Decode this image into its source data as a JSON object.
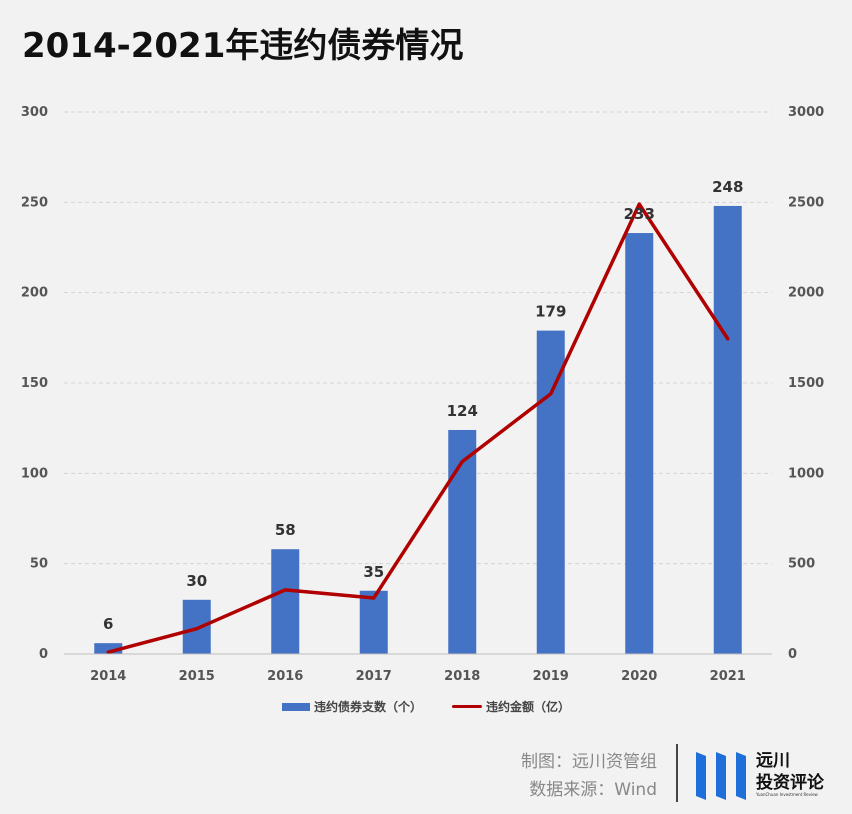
{
  "title": "2014-2021年违约债券情况",
  "chart_data": {
    "type": "bar",
    "categories": [
      "2014",
      "2015",
      "2016",
      "2017",
      "2018",
      "2019",
      "2020",
      "2021"
    ],
    "series": [
      {
        "name": "违约债券支数（个）",
        "type": "bar",
        "axis": "left",
        "values": [
          6,
          30,
          58,
          35,
          124,
          179,
          233,
          248
        ],
        "color": "#4472c4"
      },
      {
        "name": "违约金额（亿）",
        "type": "line",
        "axis": "right",
        "values": [
          10,
          140,
          355,
          310,
          1065,
          1440,
          2490,
          1745
        ],
        "color": "#b00000"
      }
    ],
    "data_labels": [
      "6",
      "30",
      "58",
      "35",
      "124",
      "179",
      "233",
      "248"
    ],
    "y_left_ticks": [
      "0",
      "50",
      "100",
      "150",
      "200",
      "250",
      "300"
    ],
    "y_right_ticks": [
      "0",
      "500",
      "1000",
      "1500",
      "2000",
      "2500",
      "3000"
    ],
    "ylim_left": [
      0,
      300
    ],
    "ylim_right": [
      0,
      3000
    ],
    "grid": true,
    "legend_position": "bottom"
  },
  "legend": {
    "bar_label": "违约债券支数（个）",
    "line_label": "违约金额（亿）"
  },
  "footer": {
    "maker": "制图：远川资管组",
    "source": "数据来源：Wind"
  },
  "logo": {
    "name_line1": "远川",
    "name_line2": "投资评论",
    "subtitle": "YuanChuan Investment Review",
    "color": "#1e6fd9"
  }
}
